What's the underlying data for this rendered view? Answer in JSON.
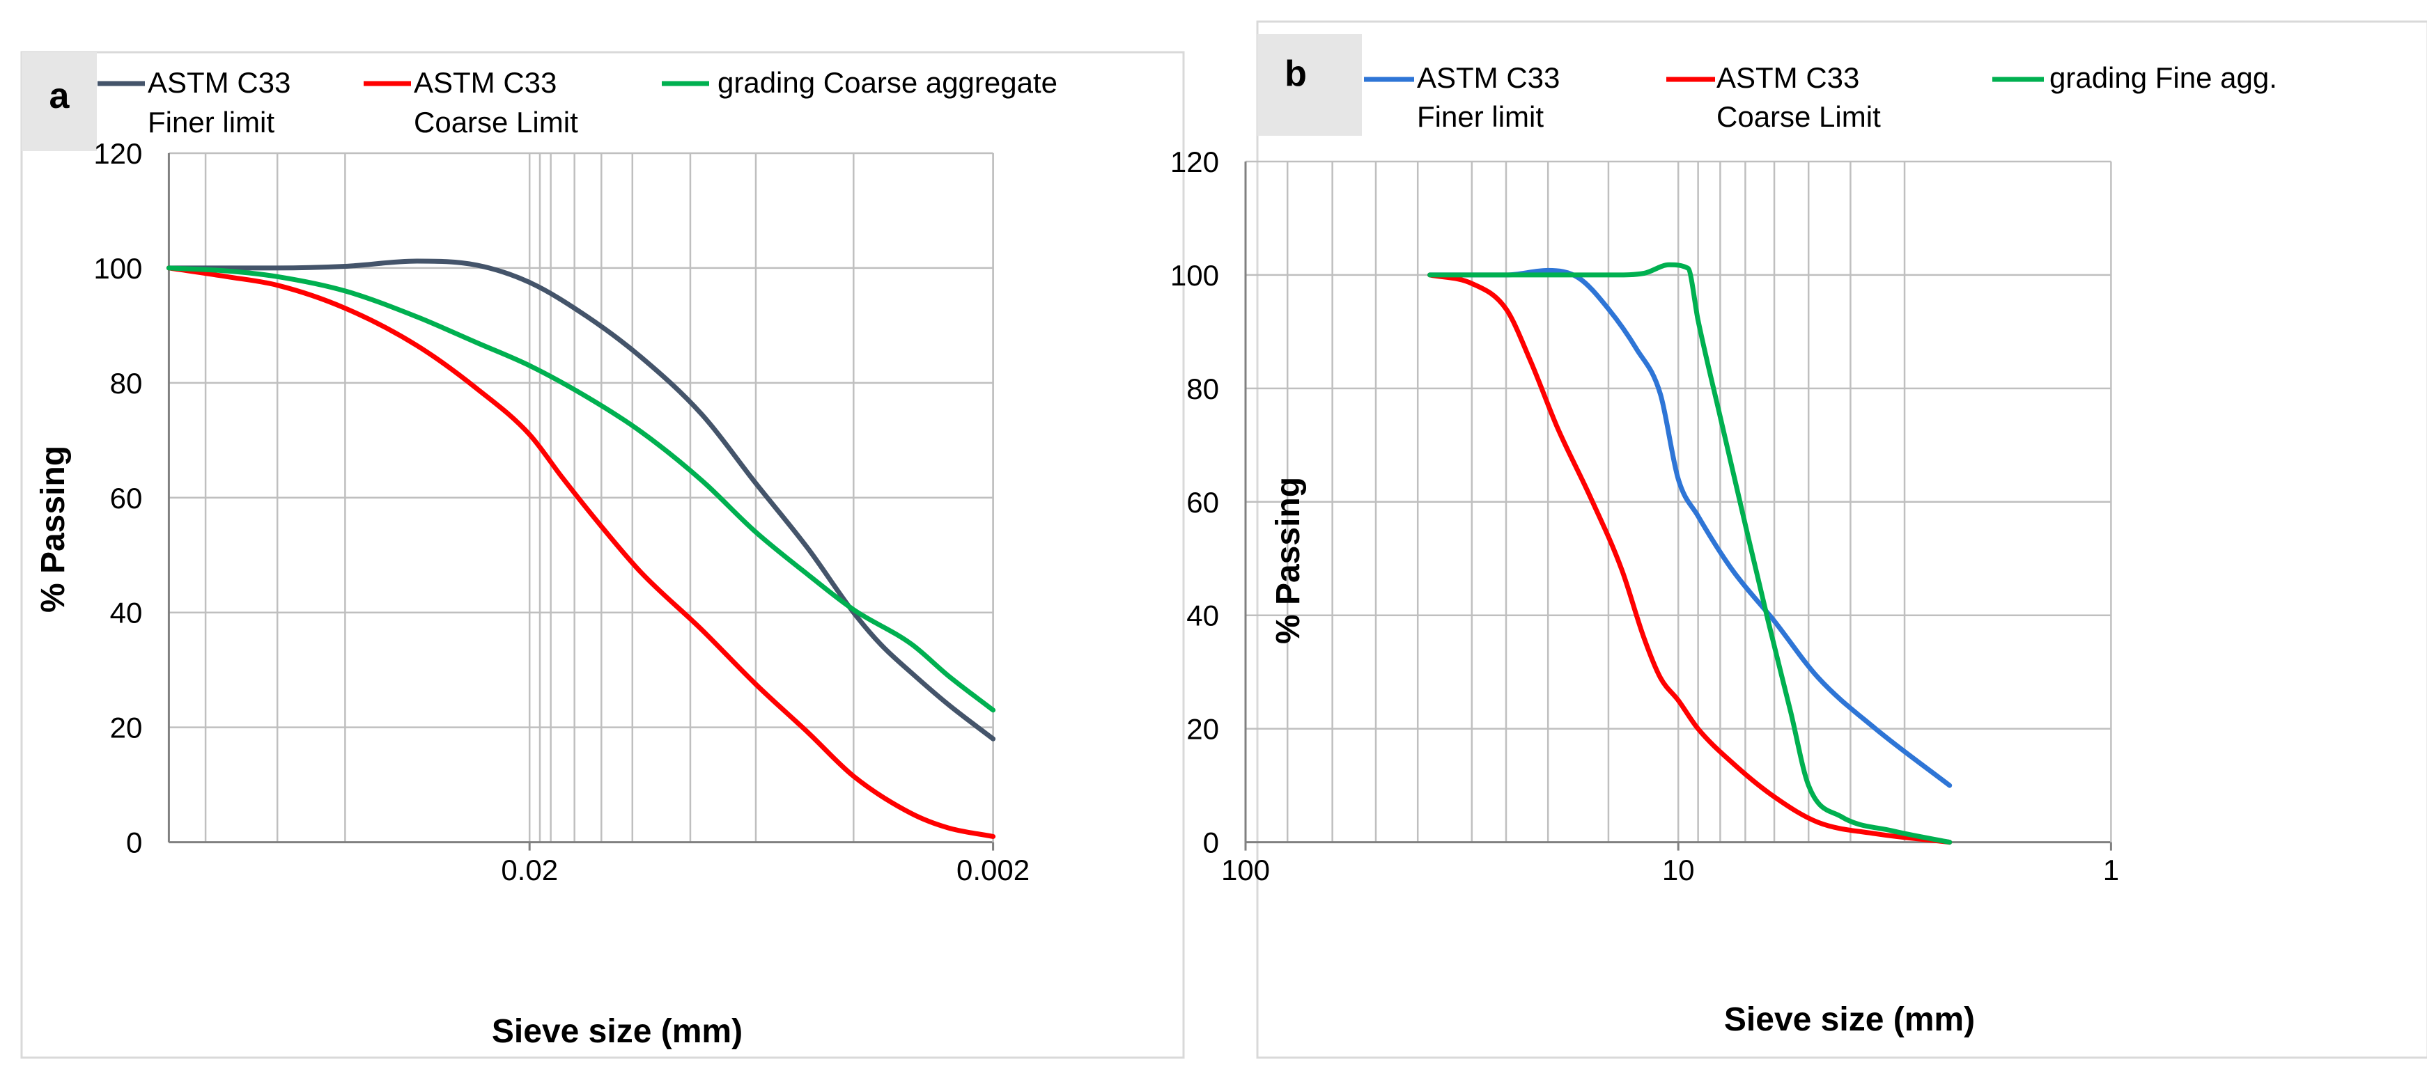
{
  "chart_data": [
    {
      "panel_label": "a",
      "type": "line",
      "title": "",
      "xlabel": "Sieve size (mm)",
      "ylabel": "% Passing",
      "x_scale": "log",
      "x_reversed": true,
      "xlim": [
        0.12,
        0.002
      ],
      "ylim": [
        0,
        120
      ],
      "y_ticks": [
        0,
        20,
        40,
        60,
        80,
        100,
        120
      ],
      "x_ticks": [
        {
          "value": 0.02,
          "label": "0.02"
        },
        {
          "value": 0.002,
          "label": "0.002"
        }
      ],
      "x_gridlines": [
        0.1,
        0.07,
        0.05,
        0.02,
        0.019,
        0.018,
        0.016,
        0.014,
        0.012,
        0.009,
        0.0065,
        0.004,
        0.002
      ],
      "grid": true,
      "legend_position": "top",
      "series": [
        {
          "name_line1": "ASTM C33",
          "name_line2": "Finer limit",
          "color": "#44546a",
          "x": [
            0.12,
            0.09,
            0.07,
            0.05,
            0.035,
            0.026,
            0.02,
            0.015,
            0.0115,
            0.0085,
            0.0065,
            0.005,
            0.004,
            0.0035,
            0.003,
            0.0025,
            0.002
          ],
          "y": [
            100,
            100,
            100,
            100.3,
            101.2,
            100.5,
            97.5,
            91.5,
            84.5,
            74.5,
            62.5,
            51,
            40,
            34.5,
            29.5,
            24,
            18
          ]
        },
        {
          "name_line1": "ASTM C33",
          "name_line2": "Coarse Limit",
          "color": "#ff0000",
          "x": [
            0.12,
            0.09,
            0.07,
            0.05,
            0.035,
            0.026,
            0.02,
            0.017,
            0.014,
            0.0115,
            0.0085,
            0.0065,
            0.005,
            0.004,
            0.003,
            0.0025,
            0.002
          ],
          "y": [
            100,
            98.5,
            97,
            93,
            86.5,
            79,
            71,
            63.5,
            55,
            47,
            37,
            27.5,
            19,
            11.5,
            5,
            2.5,
            1
          ]
        },
        {
          "name_line1": "grading Coarse aggregate",
          "name_line2": "",
          "color": "#00b050",
          "x": [
            0.12,
            0.09,
            0.07,
            0.05,
            0.035,
            0.026,
            0.02,
            0.015,
            0.0115,
            0.0085,
            0.0065,
            0.005,
            0.004,
            0.003,
            0.0025,
            0.002
          ],
          "y": [
            100,
            99.5,
            98.5,
            96,
            91.5,
            87,
            83,
            77.5,
            71.5,
            63,
            54,
            46.5,
            40.5,
            34.5,
            29,
            23
          ]
        }
      ]
    },
    {
      "panel_label": "b",
      "type": "line",
      "title": "",
      "xlabel": "Sieve size (mm)",
      "ylabel": "% Passing",
      "x_scale": "log",
      "x_reversed": true,
      "xlim": [
        100,
        1
      ],
      "ylim": [
        0,
        120
      ],
      "y_ticks": [
        0,
        20,
        40,
        60,
        80,
        100,
        120
      ],
      "x_ticks": [
        {
          "value": 100,
          "label": "100"
        },
        {
          "value": 10,
          "label": "10"
        },
        {
          "value": 1,
          "label": "1"
        }
      ],
      "x_gridlines": [
        100,
        80,
        63,
        50,
        40,
        30,
        25,
        20,
        14.5,
        10,
        9,
        8,
        7,
        6,
        5,
        4,
        3
      ],
      "grid": true,
      "legend_position": "top",
      "series": [
        {
          "name_line1": "ASTM C33",
          "name_line2": "Finer limit",
          "color": "#2e75d6",
          "x": [
            37.5,
            30,
            25,
            20,
            17,
            14.5,
            12.5,
            11,
            10,
            9,
            7.5,
            6,
            4.75,
            3.5,
            2.36
          ],
          "y": [
            100,
            100,
            100,
            100.8,
            99.5,
            94,
            87,
            79,
            64,
            57.5,
            48,
            39,
            29,
            20,
            10
          ]
        },
        {
          "name_line1": "ASTM C33",
          "name_line2": "Coarse Limit",
          "color": "#ff0000",
          "x": [
            37.5,
            30,
            25,
            22,
            19,
            16,
            13.5,
            12,
            11,
            10,
            9,
            7.5,
            6,
            4.75,
            3.5,
            2.36
          ],
          "y": [
            100,
            98.5,
            94,
            85,
            73,
            61,
            48,
            36,
            29,
            25,
            20,
            14,
            8,
            3.5,
            1.5,
            0
          ]
        },
        {
          "name_line1": "grading Fine agg.",
          "name_line2": "",
          "color": "#00b050",
          "x": [
            37.5,
            30,
            20,
            14,
            12,
            10.5,
            9.5,
            9,
            8,
            7,
            6.2,
            5.5,
            5,
            4.2,
            3.2,
            2.36
          ],
          "y": [
            100,
            100,
            100,
            100,
            100.3,
            101.8,
            101.2,
            92,
            75,
            56,
            39,
            23,
            10,
            4.5,
            2,
            0
          ]
        }
      ]
    }
  ]
}
